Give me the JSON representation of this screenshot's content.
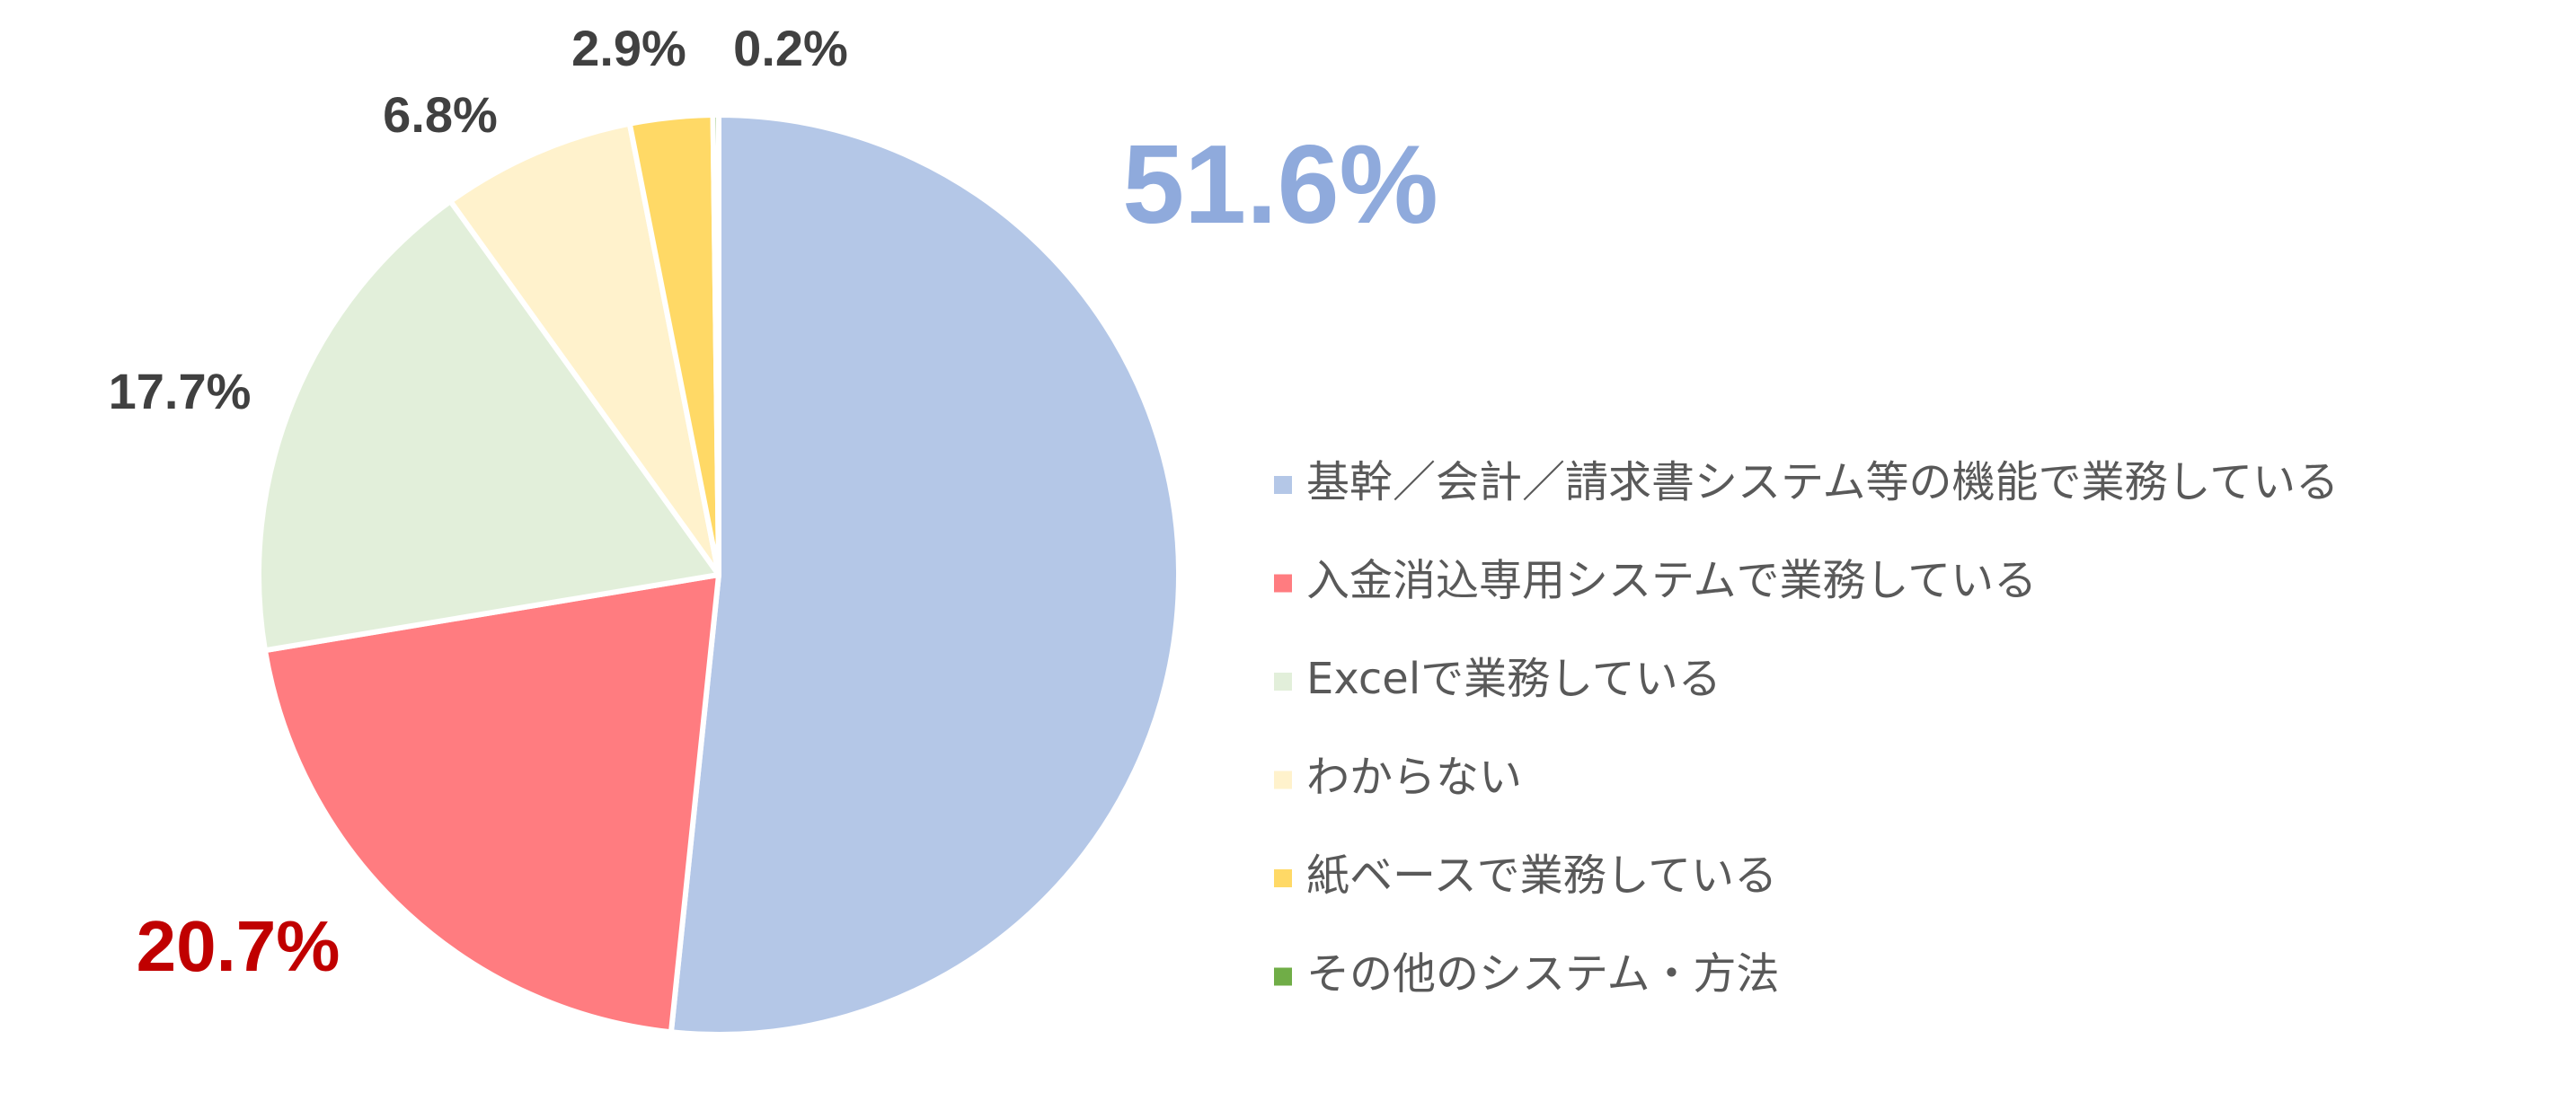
{
  "chart_data": {
    "type": "pie",
    "title": "",
    "start": "top",
    "direction": "clockwise",
    "legend_placement": "right",
    "slices": [
      {
        "label": "基幹／会計／請求書システム等の機能で業務している",
        "value": 51.6,
        "value_label": "51.6%",
        "color": "#b4c7e7",
        "label_color": "#8faadc",
        "label_emphasis": "large"
      },
      {
        "label": "入金消込専用システムで業務している",
        "value": 20.7,
        "value_label": "20.7%",
        "color": "#ff7c80",
        "label_color": "#c00000",
        "label_emphasis": "medium"
      },
      {
        "label": "Excelで業務している",
        "value": 17.7,
        "value_label": "17.7%",
        "color": "#e2efda",
        "label_color": "#404040",
        "label_emphasis": "normal"
      },
      {
        "label": "わからない",
        "value": 6.8,
        "value_label": "6.8%",
        "color": "#fff2cc",
        "label_color": "#404040",
        "label_emphasis": "normal"
      },
      {
        "label": "紙ベースで業務している",
        "value": 2.9,
        "value_label": "2.9%",
        "color": "#ffd966",
        "label_color": "#404040",
        "label_emphasis": "normal"
      },
      {
        "label": "その他のシステム・方法",
        "value": 0.2,
        "value_label": "0.2%",
        "color": "#70ad47",
        "label_color": "#404040",
        "label_emphasis": "normal"
      }
    ]
  }
}
